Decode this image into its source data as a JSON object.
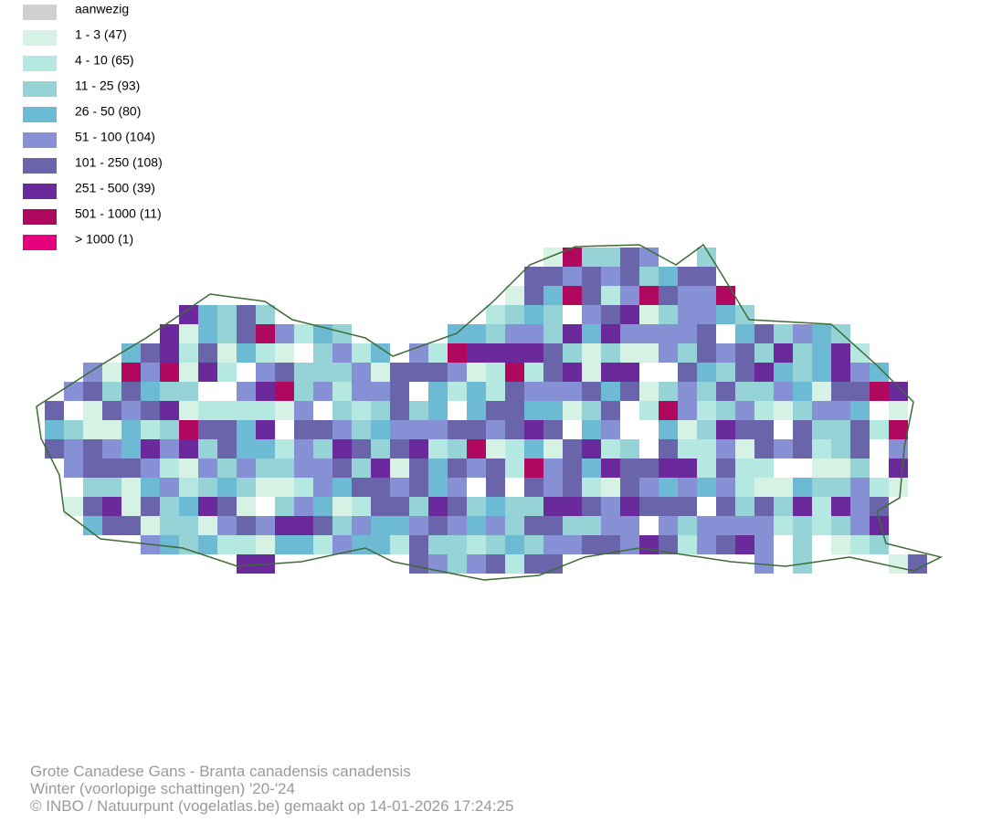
{
  "legend": {
    "items": [
      {
        "label": "aanwezig",
        "color": "#d0d0d0"
      },
      {
        "label": "1 - 3 (47)",
        "color": "#d6f2e4"
      },
      {
        "label": "4 - 10 (65)",
        "color": "#b5e8e0"
      },
      {
        "label": "11 - 25 (93)",
        "color": "#96d3d6"
      },
      {
        "label": "26 - 50 (80)",
        "color": "#6cbad4"
      },
      {
        "label": "51 - 100 (104)",
        "color": "#8690d4"
      },
      {
        "label": "101 - 250 (108)",
        "color": "#6a64aa"
      },
      {
        "label": "251 - 500 (39)",
        "color": "#6a2a9c"
      },
      {
        "label": "501 - 1000 (11)",
        "color": "#b0085e"
      },
      {
        "label": "> 1000 (1)",
        "color": "#e6007e"
      }
    ]
  },
  "footer": {
    "lines": [
      "Grote Canadese Gans - Branta canadensis canadensis",
      "Winter (voorlopige schattingen) '20-'24",
      "© INBO / Natuurpunt (vogelatlas.be) gemaakt op 14-01-2026 17:24:25"
    ]
  }
}
